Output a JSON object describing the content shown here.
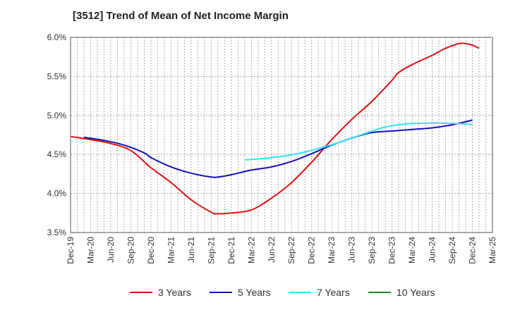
{
  "chart_data": {
    "type": "line",
    "title": "[3512]  Trend of Mean of Net Income Margin",
    "xlabel": "",
    "ylabel": "",
    "x_tick_labels": [
      "Dec-19",
      "Mar-20",
      "Jun-20",
      "Sep-20",
      "Dec-20",
      "Mar-21",
      "Jun-21",
      "Sep-21",
      "Dec-21",
      "Mar-22",
      "Jun-22",
      "Sep-22",
      "Dec-22",
      "Mar-23",
      "Jun-23",
      "Sep-23",
      "Dec-23",
      "Mar-24",
      "Jun-24",
      "Sep-24",
      "Dec-24",
      "Mar-25"
    ],
    "y_tick_labels": [
      "3.5%",
      "4.0%",
      "4.5%",
      "5.0%",
      "5.5%",
      "6.0%"
    ],
    "ylim": [
      3.5,
      6.0
    ],
    "y_ticks": [
      3.5,
      4.0,
      4.5,
      5.0,
      5.5,
      6.0
    ],
    "grid": true,
    "legend_position": "bottom",
    "x_months": [
      "2019-12",
      "2020-01",
      "2020-02",
      "2020-03",
      "2020-04",
      "2020-05",
      "2020-06",
      "2020-07",
      "2020-08",
      "2020-09",
      "2020-10",
      "2020-11",
      "2020-12",
      "2021-01",
      "2021-02",
      "2021-03",
      "2021-04",
      "2021-05",
      "2021-06",
      "2021-07",
      "2021-08",
      "2021-09",
      "2021-10",
      "2021-11",
      "2021-12",
      "2022-01",
      "2022-02",
      "2022-03",
      "2022-04",
      "2022-05",
      "2022-06",
      "2022-07",
      "2022-08",
      "2022-09",
      "2022-10",
      "2022-11",
      "2022-12",
      "2023-01",
      "2023-02",
      "2023-03",
      "2023-04",
      "2023-05",
      "2023-06",
      "2023-07",
      "2023-08",
      "2023-09",
      "2023-10",
      "2023-11",
      "2023-12",
      "2024-01",
      "2024-02",
      "2024-03",
      "2024-04",
      "2024-05",
      "2024-06",
      "2024-07",
      "2024-08",
      "2024-09",
      "2024-10",
      "2024-11",
      "2024-12",
      "2025-01",
      "2025-02",
      "2025-03"
    ],
    "series": [
      {
        "name": "3 Years",
        "color": "#dd1111",
        "points": [
          [
            "2019-12",
            4.73
          ],
          [
            "2020-03",
            4.69
          ],
          [
            "2020-06",
            4.64
          ],
          [
            "2020-09",
            4.55
          ],
          [
            "2020-12",
            4.33
          ],
          [
            "2021-03",
            4.14
          ],
          [
            "2021-06",
            3.92
          ],
          [
            "2021-09",
            3.76
          ],
          [
            "2021-10",
            3.74
          ],
          [
            "2021-12",
            3.75
          ],
          [
            "2022-03",
            3.79
          ],
          [
            "2022-06",
            3.94
          ],
          [
            "2022-09",
            4.14
          ],
          [
            "2022-12",
            4.4
          ],
          [
            "2023-03",
            4.69
          ],
          [
            "2023-06",
            4.95
          ],
          [
            "2023-09",
            5.18
          ],
          [
            "2023-12",
            5.45
          ],
          [
            "2024-01",
            5.55
          ],
          [
            "2024-03",
            5.65
          ],
          [
            "2024-06",
            5.77
          ],
          [
            "2024-08",
            5.86
          ],
          [
            "2024-10",
            5.92
          ],
          [
            "2024-11",
            5.92
          ],
          [
            "2024-12",
            5.9
          ],
          [
            "2025-01",
            5.86
          ]
        ]
      },
      {
        "name": "5 Years",
        "color": "#1111bb",
        "points": [
          [
            "2020-02",
            4.72
          ],
          [
            "2020-05",
            4.68
          ],
          [
            "2020-08",
            4.62
          ],
          [
            "2020-11",
            4.52
          ],
          [
            "2020-12",
            4.46
          ],
          [
            "2021-03",
            4.34
          ],
          [
            "2021-06",
            4.26
          ],
          [
            "2021-09",
            4.21
          ],
          [
            "2021-10",
            4.21
          ],
          [
            "2021-12",
            4.24
          ],
          [
            "2022-03",
            4.3
          ],
          [
            "2022-06",
            4.34
          ],
          [
            "2022-09",
            4.41
          ],
          [
            "2022-12",
            4.51
          ],
          [
            "2023-03",
            4.62
          ],
          [
            "2023-06",
            4.71
          ],
          [
            "2023-09",
            4.78
          ],
          [
            "2023-12",
            4.8
          ],
          [
            "2024-03",
            4.82
          ],
          [
            "2024-06",
            4.84
          ],
          [
            "2024-09",
            4.88
          ],
          [
            "2024-12",
            4.94
          ]
        ]
      },
      {
        "name": "7 Years",
        "color": "#33e5f5",
        "points": [
          [
            "2022-02",
            4.43
          ],
          [
            "2022-05",
            4.45
          ],
          [
            "2022-08",
            4.48
          ],
          [
            "2022-11",
            4.53
          ],
          [
            "2023-02",
            4.6
          ],
          [
            "2023-05",
            4.68
          ],
          [
            "2023-08",
            4.77
          ],
          [
            "2023-11",
            4.85
          ],
          [
            "2024-02",
            4.89
          ],
          [
            "2024-05",
            4.9
          ],
          [
            "2024-08",
            4.9
          ],
          [
            "2024-11",
            4.89
          ],
          [
            "2024-12",
            4.88
          ]
        ]
      },
      {
        "name": "10 Years",
        "color": "#228822",
        "points": []
      }
    ]
  }
}
